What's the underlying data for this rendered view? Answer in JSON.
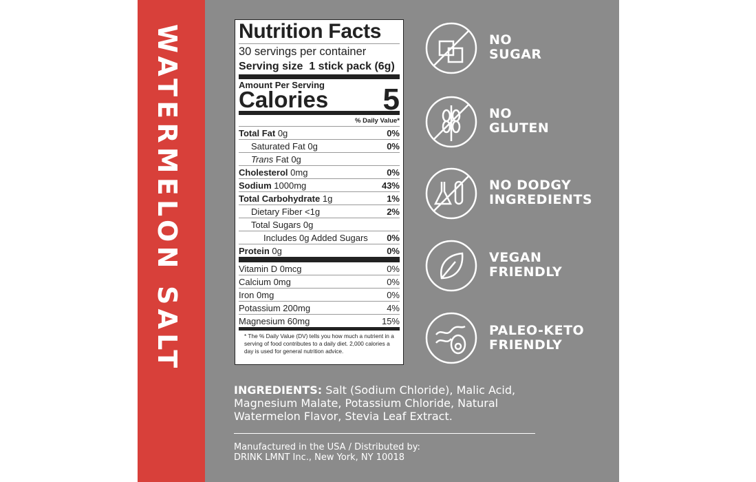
{
  "side_label": "WATERMELON SALT",
  "nutrition": {
    "title": "Nutrition Facts",
    "servings": "30 servings per container",
    "serving_size_label": "Serving size",
    "serving_size_value": "1 stick pack (6g)",
    "amount_per_serving": "Amount Per Serving",
    "calories_label": "Calories",
    "calories_value": "5",
    "dv_header": "% Daily Value*",
    "rows": [
      {
        "name": "Total Fat",
        "amount": "0g",
        "dv": "0%"
      },
      {
        "name": "Saturated Fat",
        "amount": "0g",
        "dv": "0%"
      },
      {
        "prefix": "Trans",
        "name": "Fat",
        "amount": "0g"
      },
      {
        "name": "Cholesterol",
        "amount": "0mg",
        "dv": "0%"
      },
      {
        "name": "Sodium",
        "amount": "1000mg",
        "dv": "43%"
      },
      {
        "name": "Total Carbohydrate",
        "amount": "1g",
        "dv": "1%"
      },
      {
        "name": "Dietary Fiber",
        "amount": "<1g",
        "dv": "2%"
      },
      {
        "name": "Total Sugars",
        "amount": "0g"
      },
      {
        "name": "Includes 0g Added Sugars",
        "dv": "0%"
      },
      {
        "name": "Protein",
        "amount": "0g",
        "dv": "0%"
      }
    ],
    "vitamins": [
      {
        "name": "Vitamin D 0mcg",
        "dv": "0%"
      },
      {
        "name": "Calcium 0mg",
        "dv": "0%"
      },
      {
        "name": "Iron 0mg",
        "dv": "0%"
      },
      {
        "name": "Potassium 200mg",
        "dv": "4%"
      },
      {
        "name": "Magnesium 60mg",
        "dv": "15%"
      }
    ],
    "footnote": "* The % Daily Value (DV) tells you how much a nutrient in a serving of food contributes to a daily diet. 2,000 calories a day is used for general nutrition advice."
  },
  "badges": [
    {
      "line1": "NO",
      "line2": "SUGAR"
    },
    {
      "line1": "NO",
      "line2": "GLUTEN"
    },
    {
      "line1": "NO DODGY",
      "line2": "INGREDIENTS"
    },
    {
      "line1": "VEGAN",
      "line2": "FRIENDLY"
    },
    {
      "line1": "PALEO-KETO",
      "line2": "FRIENDLY"
    }
  ],
  "ingredients": {
    "label": "INGREDIENTS:",
    "text": "Salt (Sodium Chloride), Malic Acid, Magnesium Malate, Potassium Chloride, Natural Watermelon Flavor, Stevia Leaf Extract."
  },
  "manufacturer": [
    "Manufactured in the USA / Distributed by:",
    "DRINK LMNT Inc., New York, NY 10018"
  ]
}
